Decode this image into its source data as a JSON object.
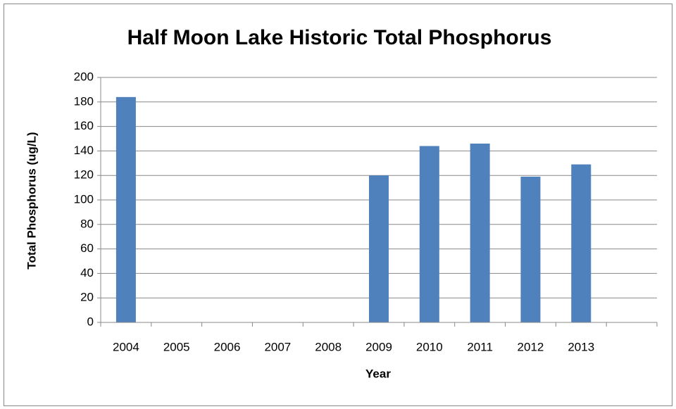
{
  "chart_data": {
    "type": "bar",
    "title": "Half Moon Lake Historic Total Phosphorus",
    "x_label": "Year",
    "y_label": "Total Phosphorus (ug/L)",
    "categories": [
      "2004",
      "2005",
      "2006",
      "2007",
      "2008",
      "2009",
      "2010",
      "2011",
      "2012",
      "2013",
      null
    ],
    "values": [
      184,
      null,
      null,
      null,
      null,
      120,
      144,
      146,
      119,
      129,
      null
    ],
    "color": "#4f81bd",
    "ylim": [
      0,
      200
    ],
    "yticks": [
      0,
      20,
      40,
      60,
      80,
      100,
      120,
      140,
      160,
      180,
      200
    ],
    "grid": true
  }
}
